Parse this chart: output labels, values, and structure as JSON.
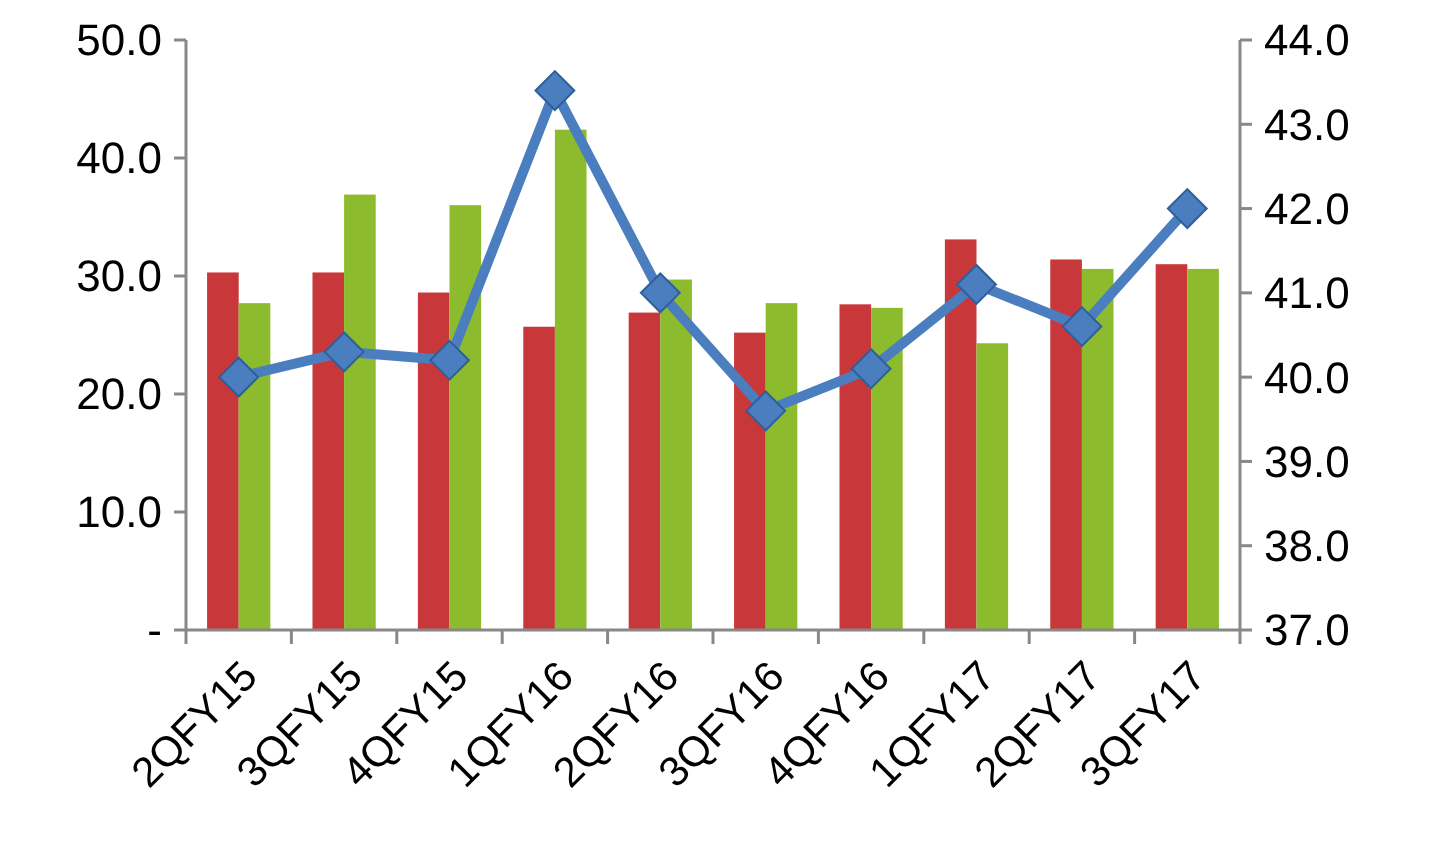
{
  "chart_data": {
    "type": "bar",
    "categories": [
      "2QFY15",
      "3QFY15",
      "4QFY15",
      "1QFY16",
      "2QFY16",
      "3QFY16",
      "4QFY16",
      "1QFY17",
      "2QFY17",
      "3QFY17"
    ],
    "series": [
      {
        "color": "#c8383a",
        "values": [
          30.3,
          30.3,
          28.6,
          25.7,
          26.9,
          25.2,
          27.6,
          33.1,
          31.4,
          31.0
        ]
      },
      {
        "color": "#8dbb2e",
        "values": [
          27.7,
          36.9,
          36.0,
          42.4,
          29.7,
          27.7,
          27.3,
          24.3,
          30.6,
          30.6
        ]
      },
      {
        "type": "line",
        "axis": "y2",
        "color": "#4a7ebf",
        "marker": "diamond",
        "values": [
          40.0,
          40.3,
          40.2,
          43.4,
          41.0,
          39.6,
          40.1,
          41.1,
          40.6,
          42.0
        ]
      }
    ],
    "ylim": [
      0,
      50
    ],
    "yticks": [
      {
        "value": 0,
        "label": "-"
      },
      {
        "value": 10,
        "label": "10.0"
      },
      {
        "value": 20,
        "label": "20.0"
      },
      {
        "value": 30,
        "label": "30.0"
      },
      {
        "value": 40,
        "label": "40.0"
      },
      {
        "value": 50,
        "label": "50.0"
      }
    ],
    "y2lim": [
      37,
      44
    ],
    "y2ticks": [
      {
        "value": 37,
        "label": "37.0"
      },
      {
        "value": 38,
        "label": "38.0"
      },
      {
        "value": 39,
        "label": "39.0"
      },
      {
        "value": 40,
        "label": "40.0"
      },
      {
        "value": 41,
        "label": "41.0"
      },
      {
        "value": 42,
        "label": "42.0"
      },
      {
        "value": 43,
        "label": "43.0"
      },
      {
        "value": 44,
        "label": "44.0"
      }
    ],
    "grid": false
  }
}
